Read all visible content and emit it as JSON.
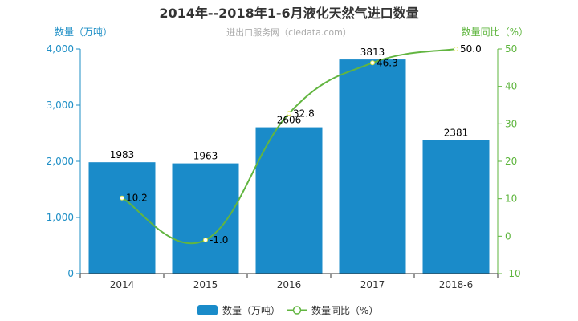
{
  "chart_data": {
    "type": "bar",
    "title": "2014年--2018年1-6月液化天然气进口数量",
    "subtitle": "进出口服务网（ciedata.com）",
    "categories": [
      "2014",
      "2015",
      "2016",
      "2017",
      "2018-6"
    ],
    "series": [
      {
        "name": "数量（万吨）",
        "type": "bar",
        "axis": "left",
        "color": "#1a8bc9",
        "values": [
          1983,
          1963,
          2606,
          3813,
          2381
        ],
        "labels": [
          "1983",
          "1963",
          "2606",
          "3813",
          "2381"
        ]
      },
      {
        "name": "数量同比（%）",
        "type": "line",
        "axis": "right",
        "color": "#62b540",
        "values": [
          10.2,
          -1.0,
          32.8,
          46.3,
          50.0
        ],
        "labels": [
          "10.2",
          "-1.0",
          "32.8",
          "46.3",
          "50.0"
        ]
      }
    ],
    "yaxis_left": {
      "label": "数量（万吨）",
      "range": [
        0,
        4000
      ],
      "ticks": [
        0,
        1000,
        2000,
        3000,
        4000
      ],
      "tick_labels": [
        "0",
        "1,000",
        "2,000",
        "3,000",
        "4,000"
      ],
      "color": "#1f8fc6"
    },
    "yaxis_right": {
      "label": "数量同比（%）",
      "range": [
        -10,
        50
      ],
      "ticks": [
        -10,
        0,
        10,
        20,
        30,
        40,
        50
      ],
      "tick_labels": [
        "-10",
        "0",
        "10",
        "20",
        "30",
        "40",
        "50"
      ],
      "color": "#5db53c"
    },
    "grid": false,
    "legend_position": "bottom-center"
  }
}
